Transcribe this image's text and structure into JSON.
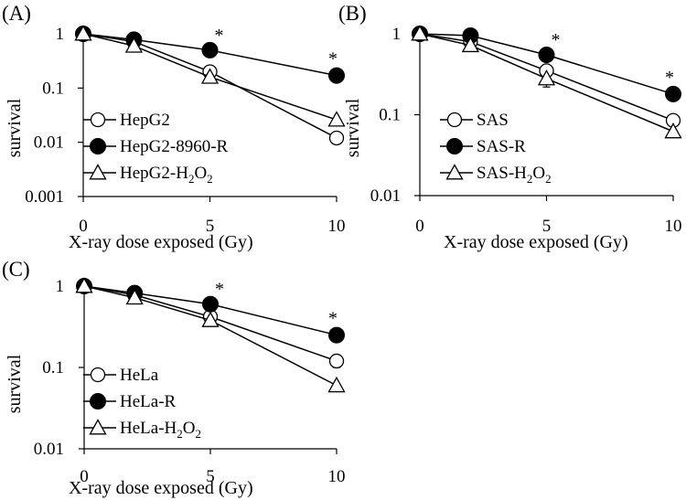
{
  "chart_data": [
    {
      "type": "line",
      "panel_label": "(A)",
      "xlabel": "X-ray dose exposed (Gy)",
      "ylabel": "survival",
      "x_ticks": [
        "0",
        "5",
        "10"
      ],
      "y_ticks": [
        "0.001",
        "0.01",
        "0.1",
        "1"
      ],
      "xlim": [
        0,
        10
      ],
      "ylim": [
        0.001,
        1
      ],
      "yscale": "log",
      "legend_position": "bottom-left",
      "series": [
        {
          "name": "HepG2",
          "sub": "",
          "marker": "open-circle",
          "x": [
            0,
            2,
            5,
            10
          ],
          "y": [
            1,
            0.72,
            0.2,
            0.012
          ],
          "err": [
            0,
            0,
            0.04,
            0
          ]
        },
        {
          "name": "HepG2-8960-R",
          "sub": "",
          "marker": "filled-circle",
          "x": [
            0,
            2,
            5,
            10
          ],
          "y": [
            1,
            0.78,
            0.5,
            0.17
          ],
          "err": [
            0,
            0,
            0,
            0
          ]
        },
        {
          "name": "HepG2-H",
          "sub": "2",
          "tail": "O",
          "sub2": "2",
          "marker": "open-triangle",
          "x": [
            0,
            2,
            5,
            10
          ],
          "y": [
            1,
            0.6,
            0.16,
            0.026
          ],
          "err": [
            0,
            0,
            0,
            0
          ]
        }
      ],
      "annotations": [
        {
          "text": "*",
          "x": 5,
          "y": 0.5
        },
        {
          "text": "*",
          "x": 10,
          "y": 0.17
        }
      ]
    },
    {
      "type": "line",
      "panel_label": "(B)",
      "xlabel": "X-ray dose exposed (Gy)",
      "ylabel": "survival",
      "x_ticks": [
        "0",
        "5",
        "10"
      ],
      "y_ticks": [
        "0.01",
        "0.1",
        "1"
      ],
      "xlim": [
        0,
        10
      ],
      "ylim": [
        0.01,
        1
      ],
      "yscale": "log",
      "legend_position": "bottom-left",
      "series": [
        {
          "name": "SAS",
          "sub": "",
          "marker": "open-circle",
          "x": [
            0,
            2,
            5,
            10
          ],
          "y": [
            1,
            0.8,
            0.35,
            0.085
          ],
          "err": [
            0,
            0,
            0.08,
            0
          ]
        },
        {
          "name": "SAS-R",
          "sub": "",
          "marker": "filled-circle",
          "x": [
            0,
            2,
            5,
            10
          ],
          "y": [
            1,
            0.95,
            0.55,
            0.18
          ],
          "err": [
            0,
            0,
            0,
            0
          ]
        },
        {
          "name": "SAS-H",
          "sub": "2",
          "tail": "O",
          "sub2": "2",
          "marker": "open-triangle",
          "x": [
            0,
            2,
            5,
            10
          ],
          "y": [
            1,
            0.72,
            0.28,
            0.062
          ],
          "err": [
            0,
            0,
            0.06,
            0
          ]
        }
      ],
      "annotations": [
        {
          "text": "*",
          "x": 5,
          "y": 0.55
        },
        {
          "text": "*",
          "x": 10,
          "y": 0.18
        }
      ]
    },
    {
      "type": "line",
      "panel_label": "(C)",
      "xlabel": "X-ray dose exposed (Gy)",
      "ylabel": "survival",
      "x_ticks": [
        "0",
        "5",
        "10"
      ],
      "y_ticks": [
        "0.01",
        "0.1",
        "1"
      ],
      "xlim": [
        0,
        10
      ],
      "ylim": [
        0.01,
        1
      ],
      "yscale": "log",
      "legend_position": "bottom-left",
      "series": [
        {
          "name": "HeLa",
          "sub": "",
          "marker": "open-circle",
          "x": [
            0,
            2,
            5,
            10
          ],
          "y": [
            1,
            0.78,
            0.42,
            0.12
          ],
          "err": [
            0,
            0,
            0,
            0.02
          ]
        },
        {
          "name": "HeLa-R",
          "sub": "",
          "marker": "filled-circle",
          "x": [
            0,
            2,
            5,
            10
          ],
          "y": [
            1,
            0.82,
            0.6,
            0.25
          ],
          "err": [
            0,
            0,
            0,
            0
          ]
        },
        {
          "name": "HeLa-H",
          "sub": "2",
          "tail": "O",
          "sub2": "2",
          "marker": "open-triangle",
          "x": [
            0,
            2,
            5,
            10
          ],
          "y": [
            1,
            0.72,
            0.38,
            0.06
          ],
          "err": [
            0,
            0,
            0,
            0
          ]
        }
      ],
      "annotations": [
        {
          "text": "*",
          "x": 5,
          "y": 0.6
        },
        {
          "text": "*",
          "x": 10,
          "y": 0.25
        }
      ]
    }
  ]
}
